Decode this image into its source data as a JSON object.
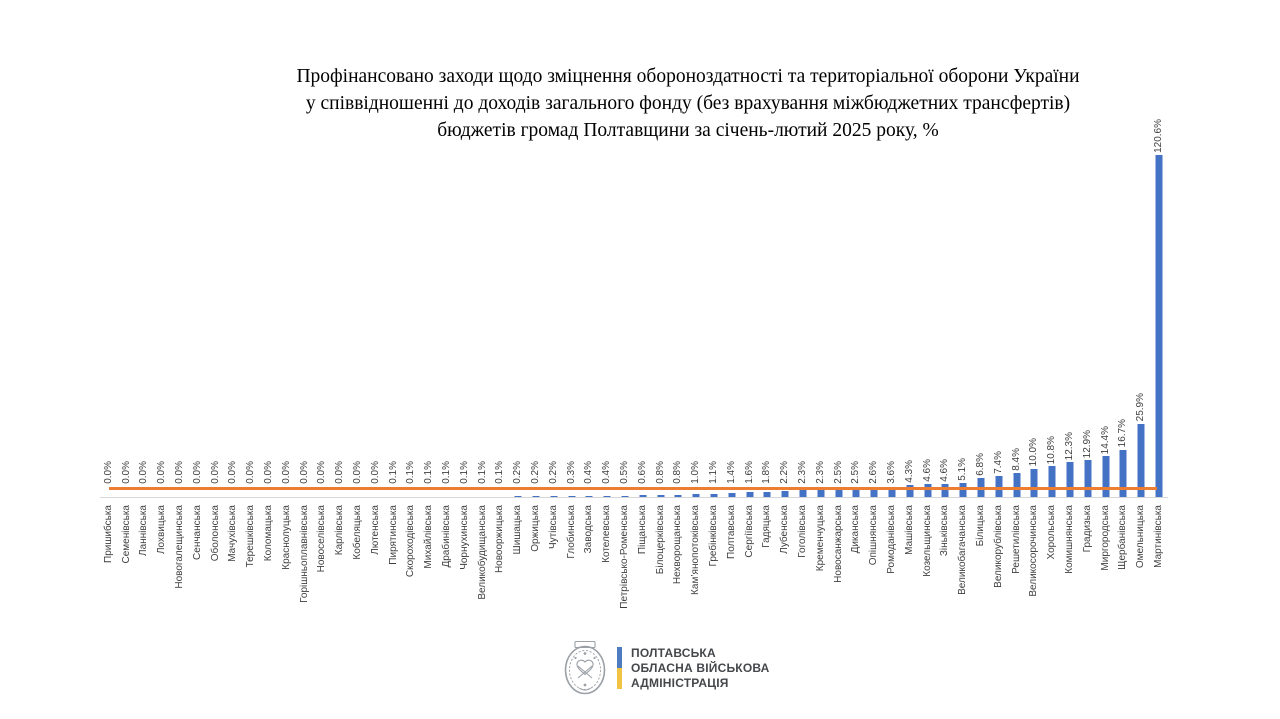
{
  "title_lines": [
    "Профінансовано заходи щодо зміцнення обороноздатності та територіальної оборони України",
    "у співвідношенні до доходів загального фонду (без врахування міжбюджетних трансфертів)",
    "бюджетів громад Полтавщини за січень-лютий 2025 року, %"
  ],
  "chart_data": {
    "type": "bar",
    "title": "Профінансовано заходи щодо зміцнення обороноздатності та територіальної оборони України у співвідношенні до доходів загального фонду (без врахування міжбюджетних трансфертів) бюджетів громад Полтавщини за січень-лютий 2025 року, %",
    "xlabel": "",
    "ylabel": "",
    "ylim": [
      0,
      125
    ],
    "grid": false,
    "legend": "none",
    "y_axis_visible": false,
    "data_labels": "rotated 90°, format 0.0%",
    "category_labels": "rotated 90°, below axis",
    "bar_color": "#4472C4",
    "label_color": "#3f3f3f",
    "axis_color": "#d6d6d6",
    "reference_line": {
      "color": "#ED7D31",
      "approx_value_percent": 3.0,
      "label": ""
    },
    "categories": [
      "Пришибська",
      "Семенівська",
      "Ланнівська",
      "Лохвицька",
      "Новогалещинська",
      "Сенчанська",
      "Оболонська",
      "Мачухівська",
      "Терешківська",
      "Коломацька",
      "Краснолуцька",
      "Горішньоплавнівська",
      "Новоселівська",
      "Карлівська",
      "Кобеляцька",
      "Лютенська",
      "Пирятинська",
      "Скороходівська",
      "Михайлівська",
      "Драбинівська",
      "Чорнухинська",
      "Великобудищанська",
      "Новооржицька",
      "Шишацька",
      "Оржицька",
      "Чутівська",
      "Глобинська",
      "Заводська",
      "Котелевська",
      "Петрівсько-Роменська",
      "Піщанська",
      "Білоцерківська",
      "Нехворощанська",
      "Кам’янопотоківська",
      "Гребінківська",
      "Полтавська",
      "Сергіївська",
      "Гадяцька",
      "Лубенська",
      "Гоголівська",
      "Кременчуцька",
      "Новосанжарська",
      "Диканська",
      "Опішнянська",
      "Ромоданівська",
      "Машівська",
      "Козельщинська",
      "Зіньківська",
      "Великобагачанська",
      "Білицька",
      "Великорублівська",
      "Решетилівська",
      "Великосорочинська",
      "Хорольська",
      "Комишнянська",
      "Градизька",
      "Миргородська",
      "Щербанівська",
      "Омельницька",
      "Мартинівська"
    ],
    "values": [
      0.0,
      0.0,
      0.0,
      0.0,
      0.0,
      0.0,
      0.0,
      0.0,
      0.0,
      0.0,
      0.0,
      0.0,
      0.0,
      0.0,
      0.0,
      0.0,
      0.1,
      0.1,
      0.1,
      0.1,
      0.1,
      0.1,
      0.1,
      0.2,
      0.2,
      0.2,
      0.3,
      0.4,
      0.4,
      0.5,
      0.6,
      0.8,
      0.8,
      1.0,
      1.1,
      1.4,
      1.6,
      1.8,
      2.2,
      2.3,
      2.3,
      2.5,
      2.5,
      2.6,
      3.6,
      4.3,
      4.6,
      4.6,
      5.1,
      6.8,
      7.4,
      8.4,
      10.0,
      10.8,
      12.3,
      12.9,
      14.4,
      16.7,
      25.9,
      120.6
    ]
  },
  "footer_logo": {
    "org_lines": [
      "ПОЛТАВСЬКА",
      "ОБЛАСНА ВІЙСЬКОВА",
      "АДМІНІСТРАЦІЯ"
    ],
    "emblem_name": "poltava-oblast-coat-of-arms",
    "flag_colors": {
      "top": "#4d7cc0",
      "bottom": "#f2c443"
    }
  }
}
